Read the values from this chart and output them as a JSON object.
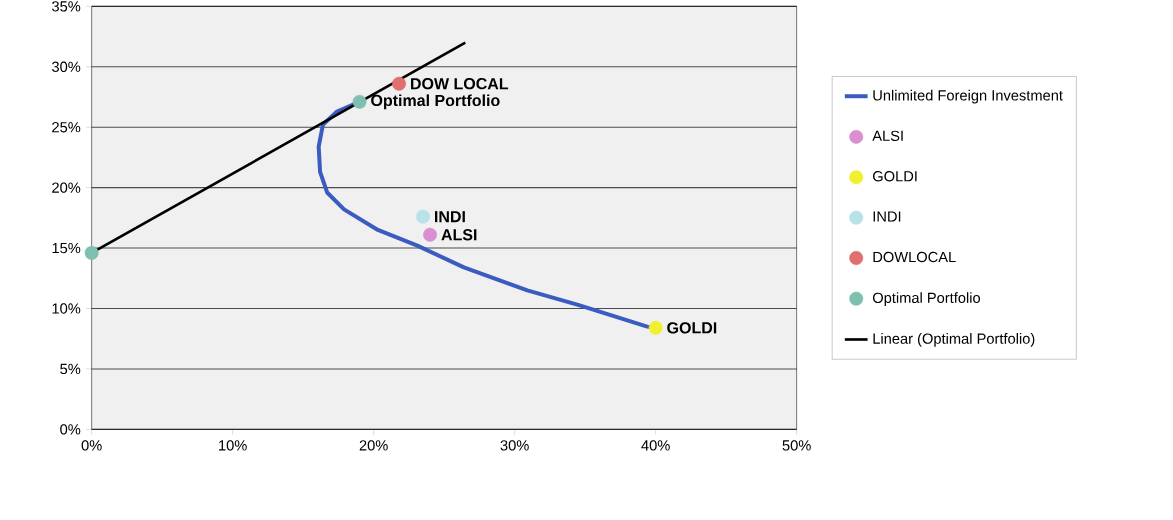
{
  "chart_data": {
    "type": "scatter",
    "xlim": [
      0,
      50
    ],
    "ylim": [
      0,
      35
    ],
    "xticks": [
      {
        "value": 0,
        "label": "0%"
      },
      {
        "value": 10,
        "label": "10%"
      },
      {
        "value": 20,
        "label": "20%"
      },
      {
        "value": 30,
        "label": "30%"
      },
      {
        "value": 40,
        "label": "40%"
      },
      {
        "value": 50,
        "label": "50%"
      }
    ],
    "yticks": [
      {
        "value": 0,
        "label": "0%"
      },
      {
        "value": 5,
        "label": "5%"
      },
      {
        "value": 10,
        "label": "10%"
      },
      {
        "value": 15,
        "label": "15%"
      },
      {
        "value": 20,
        "label": "20%"
      },
      {
        "value": 25,
        "label": "25%"
      },
      {
        "value": 30,
        "label": "30%"
      },
      {
        "value": 35,
        "label": "35%"
      }
    ],
    "grid": "y",
    "legend": "right",
    "series": [
      {
        "name": "Unlimited Foreign Investment",
        "type": "line",
        "marker": "none",
        "color": "#3a5bbf",
        "x": [
          19.0,
          17.4,
          16.4,
          16.1,
          16.2,
          16.7,
          17.9,
          20.3,
          23.1,
          26.4,
          30.9,
          34.5,
          39.4,
          40.0
        ],
        "values": [
          27.1,
          26.3,
          25.2,
          23.4,
          21.3,
          19.6,
          18.2,
          16.5,
          15.2,
          13.4,
          11.5,
          10.3,
          8.5,
          8.4
        ]
      },
      {
        "name": "ALSI",
        "type": "scatter",
        "marker": "circle",
        "color": "#d98fd0",
        "x": [
          24.0
        ],
        "values": [
          16.1
        ]
      },
      {
        "name": "GOLDI",
        "type": "scatter",
        "marker": "circle",
        "color": "#f0f030",
        "x": [
          40.0
        ],
        "values": [
          8.4
        ]
      },
      {
        "name": "INDI",
        "type": "scatter",
        "marker": "circle",
        "color": "#b8e2e8",
        "x": [
          23.5
        ],
        "values": [
          17.6
        ]
      },
      {
        "name": "DOWLOCAL",
        "type": "scatter",
        "marker": "circle",
        "color": "#e07070",
        "x": [
          21.8
        ],
        "values": [
          28.6
        ]
      },
      {
        "name": "Optimal Portfolio",
        "type": "scatter",
        "marker": "circle",
        "color": "#7fbfb0",
        "x": [
          0,
          19.0
        ],
        "values": [
          14.6,
          27.1
        ]
      },
      {
        "name": "Linear (Optimal Portfolio)",
        "type": "line",
        "marker": "none",
        "color": "#000000",
        "x": [
          0,
          26.5
        ],
        "values": [
          14.6,
          32.0
        ]
      }
    ],
    "annotations": [
      {
        "text": "DOW LOCAL",
        "x": 21.8,
        "y": 28.6
      },
      {
        "text": "Optimal Portfolio",
        "x": 19.0,
        "y": 27.1
      },
      {
        "text": "INDI",
        "x": 23.5,
        "y": 17.6
      },
      {
        "text": "ALSI",
        "x": 24.0,
        "y": 16.1
      },
      {
        "text": "GOLDI",
        "x": 40.0,
        "y": 8.4
      }
    ]
  }
}
